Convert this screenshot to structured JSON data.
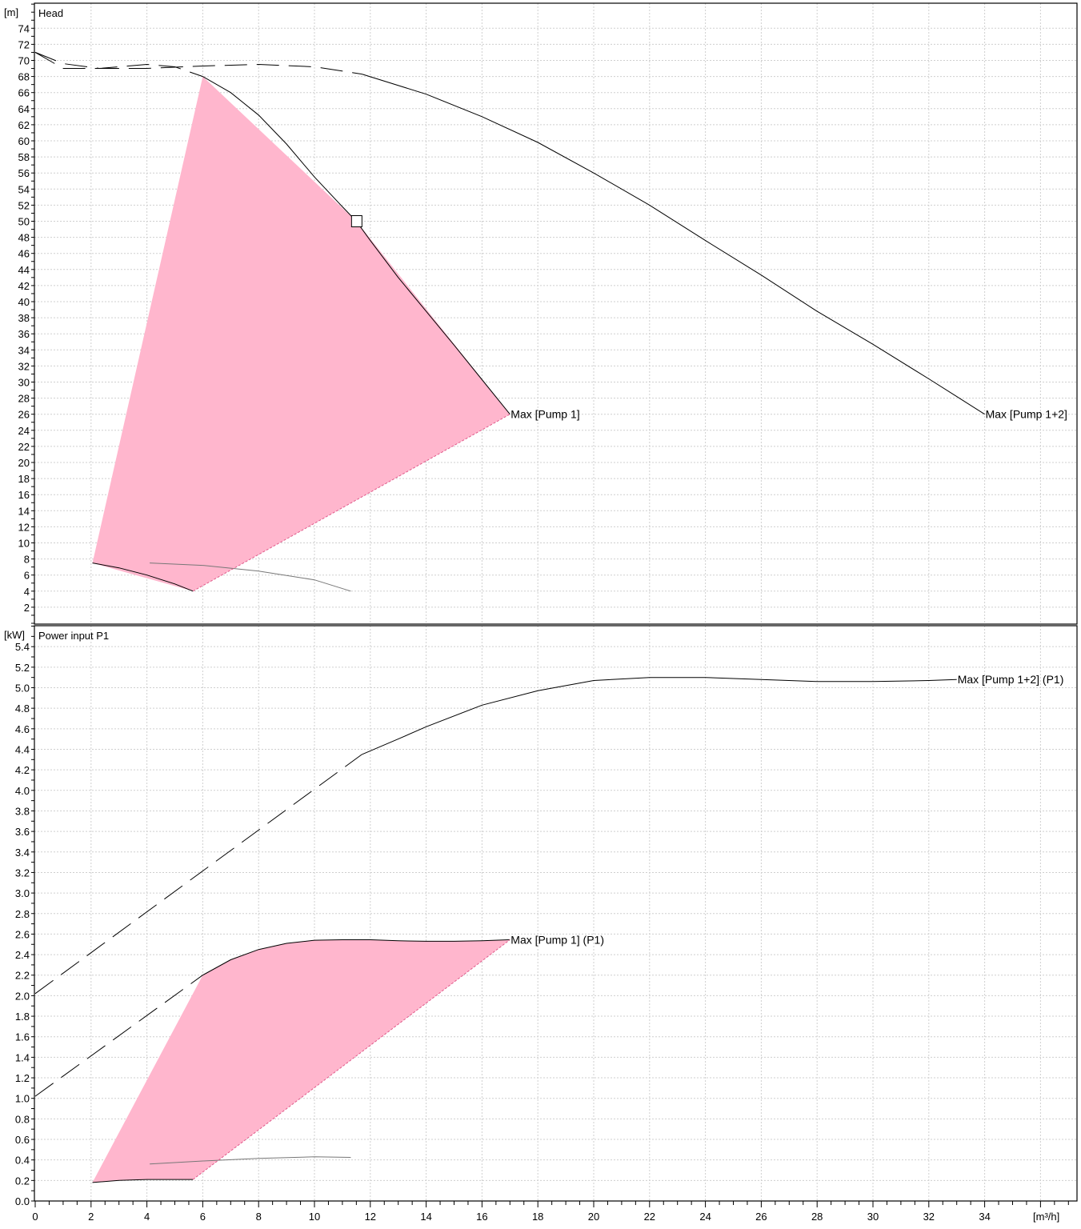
{
  "chart_data": [
    {
      "type": "line",
      "title": "Head",
      "yunit": "[m]",
      "ylim": [
        0,
        76
      ],
      "xlim": [
        0,
        37
      ],
      "grid": true,
      "y_ticks": [
        "2",
        "4",
        "6",
        "8",
        "10",
        "12",
        "14",
        "16",
        "18",
        "20",
        "22",
        "24",
        "26",
        "28",
        "30",
        "32",
        "34",
        "36",
        "38",
        "40",
        "42",
        "44",
        "46",
        "48",
        "50",
        "52",
        "54",
        "56",
        "58",
        "60",
        "62",
        "64",
        "66",
        "68",
        "70",
        "72",
        "74"
      ],
      "operating_region": {
        "color": "#ffb6cd",
        "points": [
          [
            2.05,
            7.5
          ],
          [
            6.0,
            68.0
          ],
          [
            11.5,
            50.0
          ],
          [
            17.0,
            26.0
          ],
          [
            5.65,
            4.0
          ]
        ]
      },
      "series": [
        {
          "name": "Max [Pump 1]",
          "style": "solid",
          "x": [
            6.0,
            7.0,
            8.0,
            9.0,
            10.0,
            11.0,
            11.5,
            12.0,
            13.0,
            14.0,
            15.0,
            16.0,
            17.0
          ],
          "y": [
            68.0,
            66.0,
            63.2,
            59.6,
            55.5,
            51.8,
            50.0,
            47.6,
            43.0,
            38.8,
            34.6,
            30.3,
            26.0
          ],
          "label": "Max [Pump 1]"
        },
        {
          "name": "Max [Pump 1+2]",
          "style": "solid",
          "x": [
            11.7,
            14.0,
            16.0,
            18.0,
            20.0,
            22.0,
            24.0,
            26.0,
            28.0,
            30.0,
            32.0,
            33.0,
            34.0
          ],
          "y": [
            68.3,
            65.8,
            63.0,
            59.8,
            56.0,
            52.0,
            47.6,
            43.3,
            38.8,
            34.7,
            30.4,
            28.2,
            26.0
          ],
          "label": "Max [Pump 1+2]"
        },
        {
          "name": "pump1-extension-dashed",
          "style": "dashed",
          "x": [
            0.0,
            1.0,
            2.3,
            3.0,
            4.0,
            5.0,
            6.0
          ],
          "y": [
            71.0,
            69.0,
            69.0,
            69.2,
            69.5,
            69.2,
            68.0
          ]
        },
        {
          "name": "pump1plus2-extension-dashed",
          "style": "dashed",
          "x": [
            0.0,
            1.0,
            2.3,
            4.0,
            6.0,
            8.0,
            10.0,
            11.7
          ],
          "y": [
            71.0,
            69.6,
            69.0,
            69.0,
            69.3,
            69.5,
            69.2,
            68.3
          ]
        },
        {
          "name": "min-curve",
          "style": "solid-black",
          "x": [
            2.05,
            3.0,
            4.0,
            5.0,
            5.65
          ],
          "y": [
            7.5,
            6.9,
            6.0,
            4.9,
            4.0
          ]
        },
        {
          "name": "system-curve",
          "style": "solid-gray",
          "x": [
            4.1,
            6.0,
            8.0,
            10.0,
            11.3
          ],
          "y": [
            7.5,
            7.2,
            6.5,
            5.4,
            4.0
          ]
        },
        {
          "name": "min-flow-boundary-dashed",
          "style": "pink-dashed",
          "x": [
            5.65,
            17.0
          ],
          "y": [
            4.0,
            26.0
          ]
        }
      ],
      "duty_point": {
        "x": 11.5,
        "y": 50.0
      }
    },
    {
      "type": "line",
      "title": "Power input P1",
      "yunit": "[kW]",
      "ylim": [
        0,
        5.55
      ],
      "xlim": [
        0,
        37
      ],
      "grid": true,
      "y_ticks": [
        "0.0",
        "0.2",
        "0.4",
        "0.6",
        "0.8",
        "1.0",
        "1.2",
        "1.4",
        "1.6",
        "1.8",
        "2.0",
        "2.2",
        "2.4",
        "2.6",
        "2.8",
        "3.0",
        "3.2",
        "3.4",
        "3.6",
        "3.8",
        "4.0",
        "4.2",
        "4.4",
        "4.6",
        "4.8",
        "5.0",
        "5.2",
        "5.4"
      ],
      "operating_region": {
        "color": "#ffb6cd",
        "points": [
          [
            2.05,
            0.18
          ],
          [
            6.0,
            2.2
          ],
          [
            7.0,
            2.35
          ],
          [
            8.0,
            2.45
          ],
          [
            9.0,
            2.51
          ],
          [
            10.0,
            2.54
          ],
          [
            12.0,
            2.545
          ],
          [
            14.0,
            2.53
          ],
          [
            16.0,
            2.535
          ],
          [
            17.0,
            2.545
          ],
          [
            5.65,
            0.21
          ],
          [
            4.0,
            0.21
          ],
          [
            3.0,
            0.2
          ]
        ]
      },
      "series": [
        {
          "name": "Max [Pump 1] (P1)",
          "style": "solid",
          "x": [
            6.0,
            7.0,
            8.0,
            9.0,
            10.0,
            11.0,
            12.0,
            13.0,
            14.0,
            15.0,
            16.0,
            17.0
          ],
          "y": [
            2.2,
            2.35,
            2.45,
            2.51,
            2.54,
            2.545,
            2.545,
            2.535,
            2.53,
            2.53,
            2.535,
            2.545
          ],
          "label": "Max [Pump 1] (P1)"
        },
        {
          "name": "Max [Pump 1+2] (P1)",
          "style": "solid",
          "x": [
            11.7,
            13.0,
            14.0,
            16.0,
            18.0,
            20.0,
            22.0,
            24.0,
            26.0,
            28.0,
            30.0,
            32.0,
            33.0
          ],
          "y": [
            4.35,
            4.5,
            4.62,
            4.83,
            4.97,
            5.07,
            5.1,
            5.1,
            5.08,
            5.06,
            5.06,
            5.07,
            5.08
          ],
          "label": "Max [Pump 1+2] (P1)"
        },
        {
          "name": "pump1-p1-extension-dashed",
          "style": "dashed",
          "x": [
            0.0,
            6.0
          ],
          "y": [
            1.02,
            2.2
          ]
        },
        {
          "name": "pump1plus2-p1-extension-dashed",
          "style": "dashed",
          "x": [
            0.0,
            11.7
          ],
          "y": [
            2.02,
            4.35
          ]
        },
        {
          "name": "min-power-curve",
          "style": "solid-black",
          "x": [
            2.05,
            3.0,
            4.0,
            5.0,
            5.65
          ],
          "y": [
            0.18,
            0.2,
            0.21,
            0.21,
            0.21
          ]
        },
        {
          "name": "system-power-curve",
          "style": "solid-gray",
          "x": [
            4.1,
            6.0,
            8.0,
            10.0,
            11.3
          ],
          "y": [
            0.36,
            0.39,
            0.415,
            0.43,
            0.425
          ]
        },
        {
          "name": "min-flow-power-boundary-dashed",
          "style": "pink-dashed",
          "x": [
            5.65,
            17.0
          ],
          "y": [
            0.21,
            2.545
          ]
        }
      ]
    }
  ],
  "x_axis": {
    "unit": "[m³/h]",
    "ticks": [
      "0",
      "2",
      "4",
      "6",
      "8",
      "10",
      "12",
      "14",
      "16",
      "18",
      "20",
      "22",
      "24",
      "26",
      "28",
      "30",
      "32",
      "34"
    ]
  }
}
